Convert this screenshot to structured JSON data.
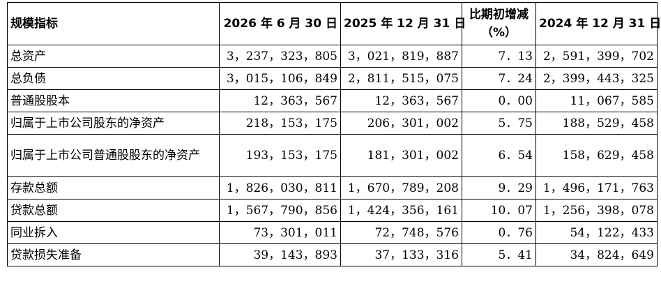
{
  "headers": [
    "规模指标",
    "2026 年 6 月 30 日",
    "2025 年 12 月 31 日",
    "比期初增减（%）",
    "2024 年 12 月 31 日"
  ],
  "rows": [
    {
      "label": "总资产",
      "v1": "3，237，323，805",
      "v2": "3，021，819，887",
      "pct": "7．13",
      "v3": "2，591，399，702"
    },
    {
      "label": "总负债",
      "v1": "3，015，106，849",
      "v2": "2，811，515，075",
      "pct": "7．24",
      "v3": "2，399，443，325"
    },
    {
      "label": "普通股股本",
      "v1": "12，363，567",
      "v2": "12，363，567",
      "pct": "0．00",
      "v3": "11，067，585"
    },
    {
      "label": "归属于上市公司股东的净资产",
      "v1": "218，153，175",
      "v2": "206，301，002",
      "pct": "5．75",
      "v3": "188，529，458"
    },
    {
      "label": "归属于上市公司普通股股东的净资产",
      "v1": "193，153，175",
      "v2": "181，301，002",
      "pct": "6．54",
      "v3": "158，629，458"
    },
    {
      "label": "存款总额",
      "v1": "1，826，030，811",
      "v2": "1，670，789，208",
      "pct": "9．29",
      "v3": "1，496，171，763"
    },
    {
      "label": "贷款总额",
      "v1": "1，567，790，856",
      "v2": "1，424，356，161",
      "pct": "10．07",
      "v3": "1，256，398，078"
    },
    {
      "label": "同业拆入",
      "v1": "73，301，011",
      "v2": "72，748，576",
      "pct": "0．76",
      "v3": "54，122，433"
    },
    {
      "label": "贷款损失准备",
      "v1": "39，143，893",
      "v2": "37，133，316",
      "pct": "5．41",
      "v3": "34，824，649"
    }
  ]
}
